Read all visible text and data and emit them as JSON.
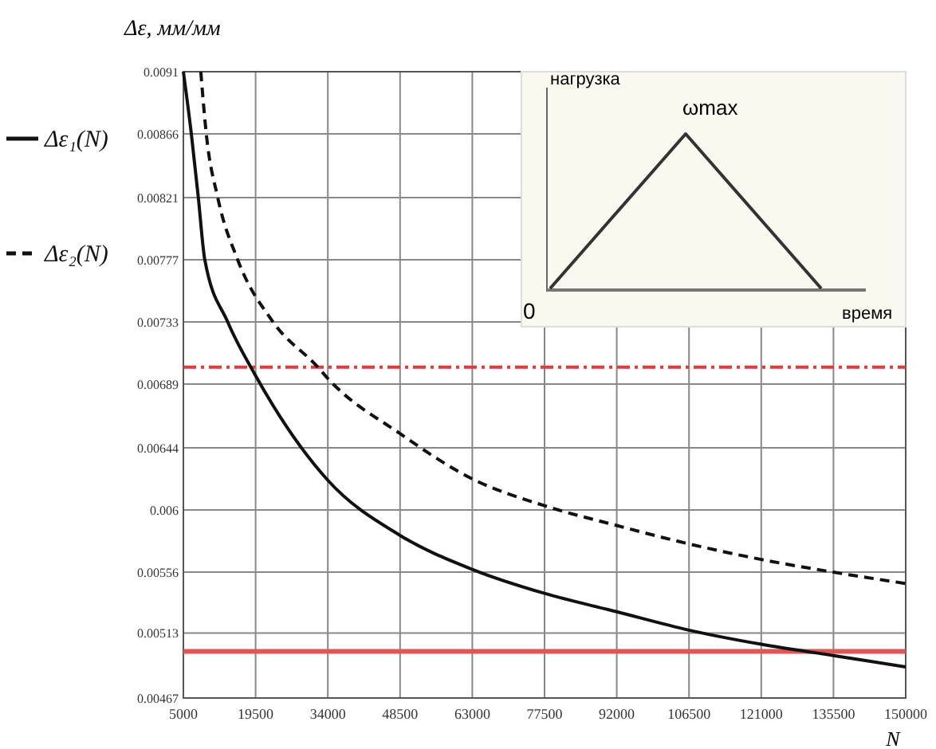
{
  "chart_data": {
    "type": "line",
    "xlabel": "N",
    "ylabel": "Δε, мм/мм",
    "xlim": [
      5000,
      150000
    ],
    "xticks": [
      5000,
      19500,
      34000,
      48500,
      63000,
      77500,
      92000,
      106500,
      121000,
      135500,
      150000
    ],
    "ylim": [
      0.00467,
      0.0091
    ],
    "yticks": [
      0.00467,
      0.00513,
      0.00556,
      0.006,
      0.00644,
      0.00689,
      0.00733,
      0.00777,
      0.00821,
      0.00866,
      0.0091
    ],
    "grid": true,
    "legend": "left",
    "series": [
      {
        "name": "Δε₁(N)",
        "color": "#111111",
        "line_style": "solid",
        "x": [
          5000,
          6600,
          8000,
          9300,
          13900,
          19500,
          34000,
          48500,
          63000,
          77500,
          92000,
          106500,
          121000,
          135500,
          150000
        ],
        "values": [
          0.0091,
          0.00866,
          0.00821,
          0.00777,
          0.00733,
          0.00695,
          0.00621,
          0.00582,
          0.00558,
          0.00541,
          0.00528,
          0.00515,
          0.00505,
          0.00497,
          0.00489
        ]
      },
      {
        "name": "Δε₂(N)",
        "color": "#111111",
        "line_style": "dashed",
        "x": [
          8500,
          9600,
          11900,
          15900,
          23000,
          32000,
          34000,
          48500,
          63000,
          77500,
          92000,
          106500,
          121000,
          135500,
          150000
        ],
        "values": [
          0.0091,
          0.00866,
          0.00821,
          0.00777,
          0.00733,
          0.00701,
          0.00693,
          0.00654,
          0.00622,
          0.00603,
          0.00589,
          0.00576,
          0.00565,
          0.00556,
          0.00548
        ]
      }
    ],
    "ref_lines": [
      {
        "axis": "y",
        "value": 0.00701,
        "color": "#e03a3a",
        "line_style": "dashed"
      },
      {
        "axis": "y",
        "value": 0.005,
        "color": "#e05555",
        "line_style": "solid"
      }
    ],
    "annotations": [
      "нагрузка",
      "ωmax",
      "0",
      "время"
    ]
  }
}
